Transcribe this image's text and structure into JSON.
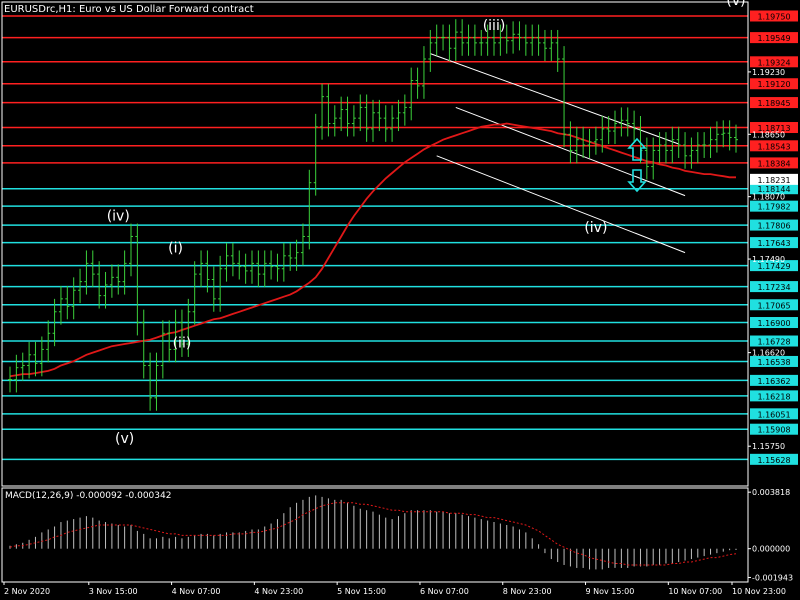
{
  "chart_data": [
    {
      "type": "line",
      "title": "EURUSDrc,H1:  Euro vs US Dollar Forward contract",
      "ylim": [
        1.1538,
        1.1988
      ],
      "x_ticks": [
        "2 Nov 2020",
        "3 Nov 15:00",
        "4 Nov 07:00",
        "4 Nov 23:00",
        "5 Nov 15:00",
        "6 Nov 07:00",
        "8 Nov 23:00",
        "9 Nov 15:00",
        "10 Nov 07:00",
        "10 Nov 23:00"
      ],
      "y_ticks": [
        "1.19230",
        "1.18650",
        "1.18070",
        "1.17490",
        "1.16620",
        "1.15750"
      ],
      "series": [
        {
          "values": [
            1.1637,
            1.1648,
            1.165,
            1.166,
            1.1652,
            1.1665,
            1.168,
            1.17,
            1.1712,
            1.1705,
            1.172,
            1.1728,
            1.1745,
            1.1735,
            1.1715,
            1.1725,
            1.1732,
            1.1728,
            1.1745,
            1.177,
            1.169,
            1.165,
            1.162,
            1.165,
            1.168,
            1.1665,
            1.169,
            1.167,
            1.17,
            1.1735,
            1.1745,
            1.173,
            1.1712,
            1.174,
            1.1752,
            1.1745,
            1.1742,
            1.1738,
            1.1745,
            1.1735,
            1.1745,
            1.1742,
            1.174,
            1.1752,
            1.175,
            1.1755,
            1.177,
            1.182,
            1.1872,
            1.19,
            1.1875,
            1.188,
            1.1888,
            1.1875,
            1.188,
            1.189,
            1.187,
            1.1885,
            1.188,
            1.187,
            1.188,
            1.1885,
            1.189,
            1.1915,
            1.191,
            1.1935,
            1.195,
            1.1955,
            1.1955,
            1.1945,
            1.196,
            1.195,
            1.1955,
            1.195,
            1.195,
            1.1955,
            1.195,
            1.1955,
            1.1952,
            1.1958,
            1.1955,
            1.195,
            1.1955,
            1.195,
            1.1945,
            1.195,
            1.1935,
            1.1865,
            1.185,
            1.186,
            1.1855,
            1.1858,
            1.186,
            1.187,
            1.1868,
            1.1875,
            1.1878,
            1.1875,
            1.187,
            1.185,
            1.1835,
            1.185,
            1.1855,
            1.185,
            1.186,
            1.1855,
            1.1845,
            1.185,
            1.1855,
            1.1855,
            1.186,
            1.1865,
            1.1866,
            1.1862,
            1.186
          ]
        },
        {
          "values": [
            1.164,
            1.1641,
            1.1642,
            1.1642,
            1.1643,
            1.1644,
            1.1645,
            1.1647,
            1.165,
            1.1652,
            1.1654,
            1.1657,
            1.166,
            1.1662,
            1.1664,
            1.1666,
            1.1668,
            1.1669,
            1.167,
            1.1671,
            1.1672,
            1.1673,
            1.1674,
            1.1676,
            1.1678,
            1.168,
            1.1681,
            1.1683,
            1.1685,
            1.1687,
            1.1689,
            1.1691,
            1.1693,
            1.1694,
            1.1696,
            1.1698,
            1.17,
            1.1702,
            1.1704,
            1.1706,
            1.1708,
            1.171,
            1.1712,
            1.1714,
            1.1716,
            1.1719,
            1.1723,
            1.1727,
            1.1732,
            1.174,
            1.175,
            1.176,
            1.177,
            1.178,
            1.1789,
            1.1797,
            1.1805,
            1.1812,
            1.1818,
            1.1824,
            1.1829,
            1.1834,
            1.1839,
            1.1843,
            1.1847,
            1.1851,
            1.1854,
            1.1857,
            1.186,
            1.1862,
            1.1864,
            1.1866,
            1.1868,
            1.187,
            1.1872,
            1.1873,
            1.1874,
            1.1874,
            1.1875,
            1.1874,
            1.1873,
            1.1872,
            1.1871,
            1.187,
            1.1869,
            1.1868,
            1.1866,
            1.1865,
            1.1864,
            1.1862,
            1.186,
            1.1858,
            1.1856,
            1.1854,
            1.1852,
            1.185,
            1.1848,
            1.1846,
            1.1844,
            1.1842,
            1.184,
            1.1839,
            1.1837,
            1.1836,
            1.1834,
            1.1833,
            1.1831,
            1.183,
            1.1829,
            1.1828,
            1.1828,
            1.1827,
            1.1826,
            1.1825,
            1.1825
          ]
        }
      ],
      "levels": [
        {
          "label": "1.19750",
          "value": 1.1975,
          "color": "#ff2020"
        },
        {
          "label": "1.19549",
          "value": 1.19549,
          "color": "#ff2020"
        },
        {
          "label": "1.19324",
          "value": 1.19324,
          "color": "#ff2020"
        },
        {
          "label": "1.19120",
          "value": 1.1912,
          "color": "#ff2020"
        },
        {
          "label": "1.18945",
          "value": 1.18945,
          "color": "#ff2020"
        },
        {
          "label": "1.18713",
          "value": 1.18713,
          "color": "#ff2020"
        },
        {
          "label": "1.18543",
          "value": 1.18543,
          "color": "#ff2020"
        },
        {
          "label": "1.18384",
          "value": 1.18384,
          "color": "#ff2020"
        },
        {
          "label": "1.18144",
          "value": 1.18144,
          "color": "#20e0e0"
        },
        {
          "label": "1.17982",
          "value": 1.17982,
          "color": "#20e0e0"
        },
        {
          "label": "1.17806",
          "value": 1.17806,
          "color": "#20e0e0"
        },
        {
          "label": "1.17643",
          "value": 1.17643,
          "color": "#20e0e0"
        },
        {
          "label": "1.17429",
          "value": 1.17429,
          "color": "#20e0e0"
        },
        {
          "label": "1.17234",
          "value": 1.17234,
          "color": "#20e0e0"
        },
        {
          "label": "1.17065",
          "value": 1.17065,
          "color": "#20e0e0"
        },
        {
          "label": "1.16900",
          "value": 1.169,
          "color": "#20e0e0"
        },
        {
          "label": "1.16728",
          "value": 1.16728,
          "color": "#20e0e0"
        },
        {
          "label": "1.16538",
          "value": 1.16538,
          "color": "#20e0e0"
        },
        {
          "label": "1.16362",
          "value": 1.16362,
          "color": "#20e0e0"
        },
        {
          "label": "1.16218",
          "value": 1.16218,
          "color": "#20e0e0"
        },
        {
          "label": "1.16051",
          "value": 1.16051,
          "color": "#20e0e0"
        },
        {
          "label": "1.15908",
          "value": 1.15908,
          "color": "#20e0e0"
        },
        {
          "label": "1.15628",
          "value": 1.15628,
          "color": "#20e0e0"
        }
      ],
      "current_price": "1.18231",
      "annotations": [
        {
          "text": "(iv)",
          "bar": 17,
          "value": 1.1785
        },
        {
          "text": "(i)",
          "bar": 26,
          "value": 1.1755
        },
        {
          "text": "(ii)",
          "bar": 27,
          "value": 1.1667
        },
        {
          "text": "(v)",
          "bar": 18,
          "value": 1.1578
        },
        {
          "text": "(iii)",
          "bar": 76,
          "value": 1.1962
        },
        {
          "text": "(iv)",
          "bar": 92,
          "value": 1.1774
        },
        {
          "text": "(v)",
          "bar": 114,
          "value": 1.1985
        }
      ],
      "channel": [
        {
          "bar1": 66,
          "v1": 1.194,
          "bar2": 105,
          "v2": 1.1856
        },
        {
          "bar1": 70,
          "v1": 1.189,
          "bar2": 106,
          "v2": 1.1808
        },
        {
          "bar1": 67,
          "v1": 1.1845,
          "bar2": 106,
          "v2": 1.1755
        }
      ],
      "arrows": [
        {
          "direction": "up",
          "color": "#20e0e0"
        },
        {
          "direction": "down",
          "color": "#20e0e0"
        }
      ]
    },
    {
      "type": "bar",
      "title": "MACD(12,26,9) -0.000092 -0.000342",
      "ylim": [
        -0.00225,
        0.0041
      ],
      "y_ticks": [
        "0.003818",
        "0.000000",
        "-0.001943"
      ],
      "histogram": [
        0.0002,
        0.0003,
        0.0004,
        0.0006,
        0.0008,
        0.0011,
        0.0013,
        0.0015,
        0.0018,
        0.0019,
        0.002,
        0.0021,
        0.0022,
        0.0021,
        0.0019,
        0.0018,
        0.0017,
        0.0016,
        0.0015,
        0.0016,
        0.0012,
        0.001,
        0.0007,
        0.0007,
        0.0008,
        0.0007,
        0.0008,
        0.0007,
        0.0008,
        0.0009,
        0.001,
        0.001,
        0.0009,
        0.001,
        0.0011,
        0.0011,
        0.0011,
        0.0012,
        0.0013,
        0.0013,
        0.0015,
        0.0017,
        0.002,
        0.0024,
        0.0028,
        0.0031,
        0.0033,
        0.0035,
        0.0036,
        0.0035,
        0.0034,
        0.0033,
        0.0033,
        0.0031,
        0.0029,
        0.0027,
        0.0026,
        0.0025,
        0.0023,
        0.0021,
        0.002,
        0.0022,
        0.0024,
        0.0026,
        0.0026,
        0.0026,
        0.0026,
        0.0025,
        0.0025,
        0.0024,
        0.0024,
        0.0023,
        0.0022,
        0.0021,
        0.002,
        0.0019,
        0.0018,
        0.0017,
        0.0016,
        0.0015,
        0.0013,
        0.0011,
        0.0007,
        0.0003,
        -0.0003,
        -0.0007,
        -0.0009,
        -0.0011,
        -0.0012,
        -0.0013,
        -0.0013,
        -0.0014,
        -0.0014,
        -0.0014,
        -0.0013,
        -0.0013,
        -0.0013,
        -0.0013,
        -0.0012,
        -0.0012,
        -0.0012,
        -0.0011,
        -0.0011,
        -0.001,
        -0.001,
        -0.0009,
        -0.0008,
        -0.0007,
        -0.0006,
        -0.0005,
        -0.0004,
        -0.0003,
        -0.0002,
        -0.0001,
        -9e-05
      ],
      "signal": [
        0.0001,
        0.0002,
        0.0002,
        0.0003,
        0.0004,
        0.0005,
        0.0006,
        0.0008,
        0.0009,
        0.0011,
        0.0012,
        0.0013,
        0.0014,
        0.0015,
        0.0016,
        0.0016,
        0.0016,
        0.0016,
        0.0016,
        0.0016,
        0.0015,
        0.0014,
        0.0013,
        0.0012,
        0.0011,
        0.001,
        0.001,
        0.0009,
        0.0009,
        0.0009,
        0.0009,
        0.0009,
        0.0009,
        0.0009,
        0.0009,
        0.001,
        0.001,
        0.001,
        0.0011,
        0.0011,
        0.0012,
        0.0013,
        0.0014,
        0.0016,
        0.0018,
        0.002,
        0.0023,
        0.0025,
        0.0027,
        0.0029,
        0.003,
        0.0031,
        0.0031,
        0.0031,
        0.0031,
        0.003,
        0.003,
        0.0029,
        0.0028,
        0.0027,
        0.0026,
        0.0026,
        0.0025,
        0.0025,
        0.0025,
        0.0025,
        0.0025,
        0.0025,
        0.0025,
        0.0024,
        0.0024,
        0.0024,
        0.0023,
        0.0023,
        0.0022,
        0.0021,
        0.0021,
        0.002,
        0.0019,
        0.0018,
        0.0017,
        0.0016,
        0.0014,
        0.0012,
        0.0009,
        0.0006,
        0.0003,
        0.0001,
        -0.0001,
        -0.0003,
        -0.0004,
        -0.0006,
        -0.0007,
        -0.0008,
        -0.0009,
        -0.001,
        -0.001,
        -0.0011,
        -0.0011,
        -0.0011,
        -0.0011,
        -0.0011,
        -0.0011,
        -0.0011,
        -0.001,
        -0.001,
        -0.0009,
        -0.0009,
        -0.0008,
        -0.0007,
        -0.0006,
        -0.0006,
        -0.0005,
        -0.0004,
        -0.00034
      ]
    }
  ]
}
